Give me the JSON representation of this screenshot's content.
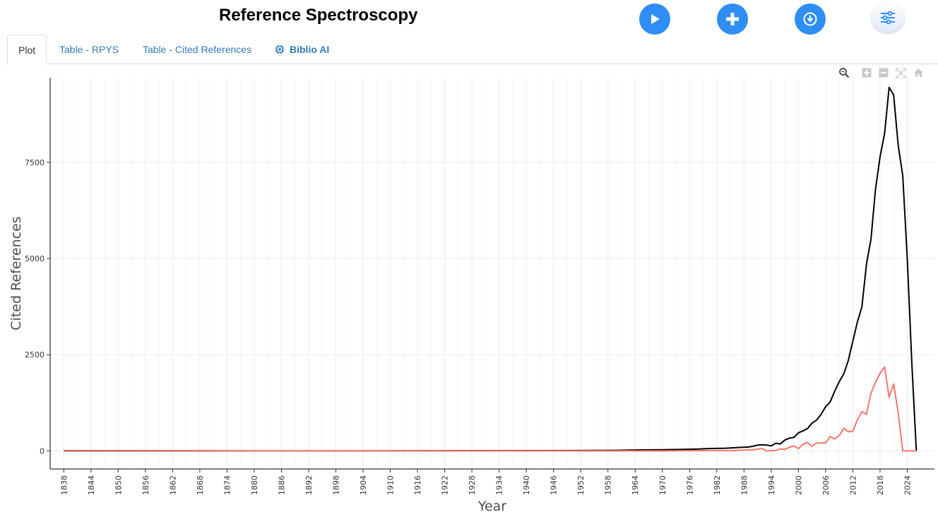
{
  "page": {
    "title": "Reference Spectroscopy"
  },
  "toolbar": {
    "run": "play-icon",
    "add": "plus-icon",
    "download": "download-icon",
    "options": "sliders-icon"
  },
  "tabs": [
    {
      "label": "Plot",
      "active": true
    },
    {
      "label": "Table - RPYS",
      "active": false
    },
    {
      "label": "Table - Cited References",
      "active": false
    },
    {
      "label": "Biblio AI",
      "active": false,
      "icon": "chip-icon"
    }
  ],
  "modebar": [
    "zoom-icon",
    "zoom-in-icon",
    "zoom-out-icon",
    "autoscale-icon",
    "reset-axes-icon"
  ],
  "colors": {
    "accent": "#2f8ef5",
    "tab_link": "#337ab7",
    "series_total": "#000000",
    "series_deviation": "#f8766d"
  },
  "chart_data": {
    "type": "line",
    "title": "",
    "xlabel": "Year",
    "ylabel": "Cited References",
    "xlim": [
      1835,
      2030
    ],
    "ylim": [
      -470,
      9700
    ],
    "x_ticks": [
      1838,
      1844,
      1850,
      1856,
      1862,
      1868,
      1874,
      1880,
      1886,
      1892,
      1898,
      1904,
      1910,
      1916,
      1922,
      1928,
      1934,
      1940,
      1946,
      1952,
      1958,
      1964,
      1970,
      1976,
      1982,
      1988,
      1994,
      2000,
      2006,
      2012,
      2018,
      2024
    ],
    "y_ticks": [
      0,
      2500,
      5000,
      7500
    ],
    "grid": true,
    "legend": "none",
    "series": [
      {
        "color": "#000000",
        "points": [
          [
            1838,
            0
          ],
          [
            1900,
            0
          ],
          [
            1950,
            10
          ],
          [
            1960,
            15
          ],
          [
            1965,
            25
          ],
          [
            1970,
            30
          ],
          [
            1975,
            40
          ],
          [
            1978,
            50
          ],
          [
            1980,
            60
          ],
          [
            1984,
            70
          ],
          [
            1987,
            90
          ],
          [
            1989,
            100
          ],
          [
            1990,
            120
          ],
          [
            1991,
            150
          ],
          [
            1992,
            160
          ],
          [
            1993,
            150
          ],
          [
            1994,
            130
          ],
          [
            1995,
            200
          ],
          [
            1996,
            180
          ],
          [
            1997,
            280
          ],
          [
            1998,
            330
          ],
          [
            1999,
            350
          ],
          [
            2000,
            470
          ],
          [
            2001,
            520
          ],
          [
            2002,
            580
          ],
          [
            2003,
            720
          ],
          [
            2004,
            800
          ],
          [
            2005,
            950
          ],
          [
            2006,
            1150
          ],
          [
            2007,
            1270
          ],
          [
            2008,
            1550
          ],
          [
            2009,
            1800
          ],
          [
            2010,
            2000
          ],
          [
            2011,
            2350
          ],
          [
            2012,
            2850
          ],
          [
            2013,
            3350
          ],
          [
            2014,
            3750
          ],
          [
            2015,
            4850
          ],
          [
            2016,
            5500
          ],
          [
            2017,
            6800
          ],
          [
            2018,
            7650
          ],
          [
            2019,
            8250
          ],
          [
            2020,
            9450
          ],
          [
            2021,
            9250
          ],
          [
            2022,
            7950
          ],
          [
            2023,
            7150
          ],
          [
            2024,
            5000
          ],
          [
            2025,
            2300
          ],
          [
            2026,
            0
          ]
        ]
      },
      {
        "color": "#f8766d",
        "points": [
          [
            1838,
            -10
          ],
          [
            1900,
            0
          ],
          [
            1950,
            0
          ],
          [
            1970,
            0
          ],
          [
            1980,
            10
          ],
          [
            1985,
            5
          ],
          [
            1988,
            20
          ],
          [
            1990,
            30
          ],
          [
            1992,
            60
          ],
          [
            1993,
            0
          ],
          [
            1995,
            10
          ],
          [
            1996,
            50
          ],
          [
            1997,
            40
          ],
          [
            1998,
            90
          ],
          [
            1999,
            130
          ],
          [
            2000,
            60
          ],
          [
            2001,
            170
          ],
          [
            2002,
            220
          ],
          [
            2003,
            120
          ],
          [
            2004,
            210
          ],
          [
            2005,
            200
          ],
          [
            2006,
            210
          ],
          [
            2007,
            370
          ],
          [
            2008,
            310
          ],
          [
            2009,
            400
          ],
          [
            2010,
            590
          ],
          [
            2011,
            500
          ],
          [
            2012,
            510
          ],
          [
            2013,
            810
          ],
          [
            2014,
            1020
          ],
          [
            2015,
            950
          ],
          [
            2016,
            1500
          ],
          [
            2017,
            1780
          ],
          [
            2018,
            2020
          ],
          [
            2019,
            2180
          ],
          [
            2020,
            1390
          ],
          [
            2021,
            1740
          ],
          [
            2022,
            1000
          ],
          [
            2023,
            0
          ],
          [
            2026,
            0
          ]
        ]
      }
    ]
  }
}
